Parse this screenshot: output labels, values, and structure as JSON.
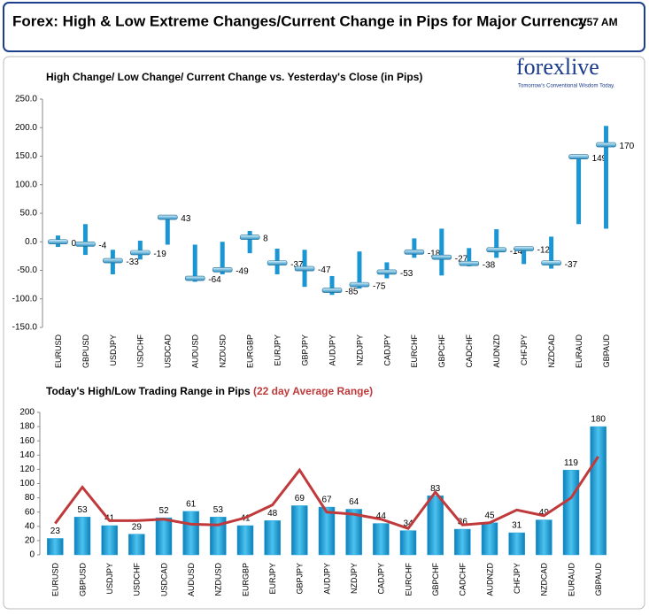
{
  "header": {
    "title": "Forex:  High & Low Extreme Changes/Current Change in Pips for Major Currency",
    "time": "7:57 AM"
  },
  "logo": {
    "name": "forexlive",
    "tagline": "Tomorrow's Conventional Wisdom Today."
  },
  "chart_data": [
    {
      "type": "range",
      "title": "High Change/ Low Change/ Current Change vs. Yesterday's Close (in Pips)",
      "categories": [
        "EURUSD",
        "GBPUSD",
        "USDJPY",
        "USDCHF",
        "USDCAD",
        "AUDUSD",
        "NZDUSD",
        "EURGBP",
        "EURJPY",
        "GBPJPY",
        "AUDJPY",
        "NZDJPY",
        "CADJPY",
        "EURCHF",
        "GBPCHF",
        "CADCHF",
        "AUDNZD",
        "CHFJPY",
        "NZDCAD",
        "EURAUD",
        "GBPAUD"
      ],
      "high": [
        11,
        31,
        -14,
        2,
        46,
        -5,
        0,
        19,
        -12,
        -14,
        -60,
        -17,
        -36,
        6,
        23,
        -11,
        22,
        -14,
        9,
        149,
        203
      ],
      "low": [
        -9,
        -23,
        -57,
        -31,
        -5,
        -70,
        -57,
        -20,
        -57,
        -79,
        -93,
        -82,
        -64,
        -28,
        -59,
        -43,
        -28,
        -39,
        -47,
        31,
        23
      ],
      "current": [
        0,
        -4,
        -33,
        -19,
        43,
        -64,
        -49,
        8,
        -37,
        -47,
        -85,
        -75,
        -53,
        -18,
        -27,
        -38,
        -14,
        -12,
        -37,
        149,
        170
      ],
      "color": "#1b96d4",
      "marker_color": "#7fd0f0",
      "ylim": [
        -150,
        250
      ],
      "yticks": [
        {
          "value": -150,
          "label": "-150.0"
        },
        {
          "value": -100,
          "label": "-100.0"
        },
        {
          "value": -50,
          "label": "-50.0"
        },
        {
          "value": 0,
          "label": "0.0"
        },
        {
          "value": 50,
          "label": "50.0"
        },
        {
          "value": 100,
          "label": "100.0"
        },
        {
          "value": 150,
          "label": "150.0"
        },
        {
          "value": 200,
          "label": "200.0"
        },
        {
          "value": 250,
          "label": "250.0"
        }
      ],
      "grid": false
    },
    {
      "type": "bar",
      "title": "Today's High/Low Trading Range in Pips",
      "categories": [
        "EURUSD",
        "GBPUSD",
        "USDJPY",
        "USDCHF",
        "USDCAD",
        "AUDUSD",
        "NZDUSD",
        "EURGBP",
        "EURJPY",
        "GBPJPY",
        "AUDJPY",
        "NZDJPY",
        "CADJPY",
        "EURCHF",
        "GBPCHF",
        "CADCHF",
        "AUDNZD",
        "CHFJPY",
        "NZDCAD",
        "EURAUD",
        "GBPAUD"
      ],
      "values": [
        23,
        53,
        41,
        29,
        52,
        61,
        53,
        41,
        48,
        69,
        67,
        64,
        44,
        34,
        83,
        36,
        45,
        31,
        49,
        119,
        180
      ],
      "color": "#22a3dc",
      "line": {
        "name": "(22 day Average Range)",
        "color": "#c0393b",
        "values": [
          44,
          95,
          48,
          48,
          50,
          43,
          42,
          52,
          70,
          119,
          60,
          57,
          50,
          37,
          88,
          42,
          45,
          63,
          55,
          80,
          138
        ]
      },
      "ylim": [
        0,
        200
      ],
      "yticks": [
        0,
        20,
        40,
        60,
        80,
        100,
        120,
        140,
        160,
        180,
        200
      ],
      "grid": false
    }
  ]
}
